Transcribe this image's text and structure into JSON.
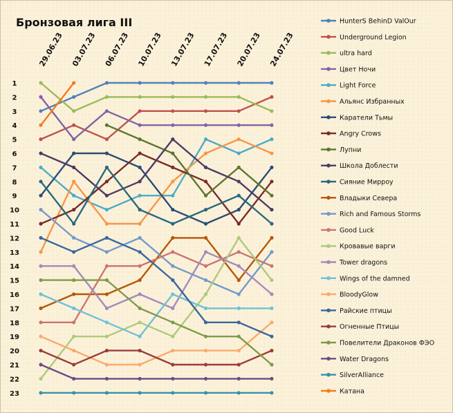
{
  "chart_data": {
    "type": "line",
    "title": "Бронзовая лига III",
    "x": [
      "29.06.23",
      "03.07.23",
      "06.07.23",
      "10.07.23",
      "13.07.23",
      "17.07.23",
      "20.07.23",
      "24.07.23"
    ],
    "y_ticks": [
      "1",
      "2",
      "3",
      "4",
      "5",
      "6",
      "7",
      "8",
      "9",
      "10",
      "11",
      "12",
      "13",
      "14",
      "15",
      "16",
      "17",
      "18",
      "19",
      "20",
      "21",
      "22",
      "23"
    ],
    "ylim": [
      1,
      23
    ],
    "y_inverted": true,
    "legend_position": "right",
    "series": [
      {
        "name": "HunterS BehinD ValOur",
        "color": "#4f81bd",
        "values": [
          3,
          2,
          1,
          1,
          1,
          1,
          1,
          1
        ]
      },
      {
        "name": "Underground Legion",
        "color": "#c0504d",
        "values": [
          5,
          4,
          5,
          3,
          3,
          3,
          3,
          2
        ]
      },
      {
        "name": "ultra hard",
        "color": "#9bbb59",
        "values": [
          1,
          3,
          2,
          2,
          2,
          2,
          2,
          3
        ]
      },
      {
        "name": "Цвет Ночи",
        "color": "#8064a2",
        "values": [
          2,
          5,
          3,
          4,
          4,
          4,
          4,
          4
        ]
      },
      {
        "name": "Light Force",
        "color": "#4bacc6",
        "values": [
          7,
          9,
          10,
          9,
          9,
          5,
          6,
          5
        ]
      },
      {
        "name": "Альянс Избранных",
        "color": "#f79646",
        "values": [
          13,
          8,
          11,
          11,
          8,
          6,
          5,
          6
        ]
      },
      {
        "name": "Каратели Тьмы",
        "color": "#2c4d75",
        "values": [
          9,
          6,
          6,
          7,
          10,
          11,
          10,
          7
        ]
      },
      {
        "name": "Angry Crows",
        "color": "#772c2a",
        "values": [
          11,
          10,
          8,
          6,
          7,
          8,
          11,
          8
        ]
      },
      {
        "name": "Лупни",
        "color": "#5f7530",
        "values": [
          null,
          null,
          4,
          5,
          6,
          9,
          7,
          9
        ]
      },
      {
        "name": "Школа Доблести",
        "color": "#4d3b62",
        "values": [
          6,
          7,
          9,
          8,
          5,
          7,
          8,
          10
        ]
      },
      {
        "name": "Сияние Мирроу",
        "color": "#276a7c",
        "values": [
          8,
          11,
          7,
          10,
          11,
          10,
          9,
          11
        ]
      },
      {
        "name": "Владыки Севера",
        "color": "#b65708",
        "values": [
          17,
          16,
          16,
          15,
          12,
          12,
          15,
          12
        ]
      },
      {
        "name": "Rich and Famous Storms",
        "color": "#729aca",
        "values": [
          10,
          12,
          13,
          12,
          14,
          15,
          16,
          13
        ]
      },
      {
        "name": "Good Luck",
        "color": "#cd7371",
        "values": [
          18,
          18,
          14,
          14,
          13,
          14,
          13,
          14
        ]
      },
      {
        "name": "Кровавые варги",
        "color": "#afc97a",
        "values": [
          22,
          19,
          19,
          18,
          19,
          16,
          12,
          15
        ]
      },
      {
        "name": "Tower dragons",
        "color": "#a18bbb",
        "values": [
          14,
          14,
          17,
          16,
          17,
          13,
          14,
          16
        ]
      },
      {
        "name": "Wings of the damned",
        "color": "#6fc1d6",
        "values": [
          16,
          17,
          18,
          19,
          16,
          17,
          17,
          17
        ]
      },
      {
        "name": "BloodyGlow",
        "color": "#f9ab6b",
        "values": [
          19,
          20,
          21,
          21,
          20,
          20,
          20,
          18
        ]
      },
      {
        "name": "Райские птицы",
        "color": "#3a679c",
        "values": [
          12,
          13,
          12,
          13,
          15,
          18,
          18,
          19
        ]
      },
      {
        "name": "Огненные Птицы",
        "color": "#9c3d3a",
        "values": [
          20,
          21,
          20,
          20,
          21,
          21,
          21,
          20
        ]
      },
      {
        "name": "Повелители Драконов ФЭО",
        "color": "#7f9a48",
        "values": [
          15,
          15,
          15,
          17,
          18,
          19,
          19,
          21
        ]
      },
      {
        "name": "Water Dragons",
        "color": "#664f85",
        "values": [
          21,
          22,
          22,
          22,
          22,
          22,
          22,
          22
        ]
      },
      {
        "name": "SilverAlliance",
        "color": "#3891a7",
        "values": [
          23,
          23,
          23,
          23,
          23,
          23,
          23,
          23
        ]
      },
      {
        "name": "Катана",
        "color": "#f07c1d",
        "values": [
          4,
          1,
          null,
          null,
          null,
          null,
          null,
          null
        ]
      }
    ]
  }
}
